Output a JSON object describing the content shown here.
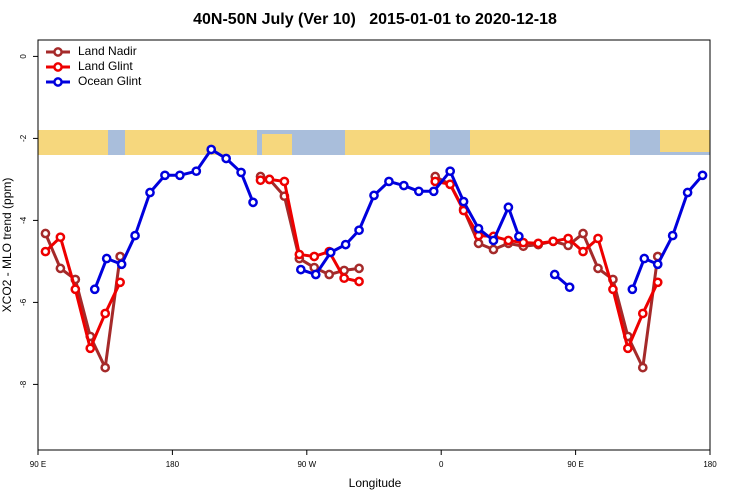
{
  "chart_data": {
    "type": "line",
    "title": "40N-50N July (Ver 10)   2015-01-01 to 2020-12-18",
    "x_label": "Longitude",
    "y_label": "XCO2 - MLO trend (ppm)",
    "xlim": [
      90,
      540
    ],
    "ylim": [
      -9.6,
      0.4
    ],
    "xticks": [
      {
        "value": 90,
        "label": "90 E"
      },
      180,
      {
        "value": 270,
        "label": "90 W"
      },
      {
        "value": 360,
        "label": "0"
      },
      {
        "value": 450,
        "label": "90 E"
      },
      {
        "value": 540,
        "label": "180"
      }
    ],
    "yticks": [
      0,
      -2,
      -4,
      -6,
      -8
    ],
    "legend": "top-left",
    "series": [
      {
        "name": "Land Nadir",
        "color": "#a52a2a",
        "x": [
          95,
          105,
          115,
          125,
          135,
          145,
          null,
          239,
          245,
          255,
          265,
          275,
          285,
          295,
          305,
          null,
          356,
          366,
          375,
          385,
          395,
          405,
          415,
          425,
          435,
          445,
          455,
          465,
          475,
          485,
          495,
          505
        ],
        "values": [
          -4.32,
          -5.17,
          -5.44,
          -6.83,
          -7.59,
          -4.88,
          null,
          -2.93,
          -3.0,
          -3.41,
          -4.93,
          -5.15,
          -5.32,
          -5.22,
          -5.17,
          null,
          -2.93,
          -3.12,
          -3.73,
          -4.56,
          -4.71,
          -4.56,
          -4.63,
          -4.59,
          -4.51,
          -4.61,
          -4.32,
          -5.17,
          -5.44,
          -6.83,
          -7.59,
          -4.88
        ]
      },
      {
        "name": "Land Glint",
        "color": "#ee0000",
        "x": [
          95,
          105,
          115,
          125,
          135,
          145,
          null,
          239,
          245,
          255,
          265,
          275,
          285,
          295,
          305,
          null,
          356,
          366,
          375,
          385,
          395,
          405,
          415,
          425,
          435,
          445,
          455,
          465,
          475,
          485,
          495,
          505
        ],
        "values": [
          -4.76,
          -4.41,
          -5.68,
          -7.12,
          -6.27,
          -5.51,
          null,
          -3.02,
          -3.0,
          -3.05,
          -4.83,
          -4.88,
          -4.76,
          -5.41,
          -5.49,
          null,
          -3.05,
          -3.12,
          -3.76,
          -4.37,
          -4.39,
          -4.49,
          -4.54,
          -4.56,
          -4.51,
          -4.44,
          -4.76,
          -4.44,
          -5.68,
          -7.12,
          -6.27,
          -5.51
        ]
      },
      {
        "name": "Ocean Glint",
        "color": "#0000dd",
        "x": [
          128,
          136,
          146,
          155,
          165,
          175,
          185,
          196,
          206,
          216,
          226,
          234,
          null,
          266,
          276,
          286,
          296,
          305,
          315,
          325,
          335,
          345,
          355,
          366,
          375,
          385,
          395,
          405,
          412,
          null,
          436,
          446,
          null,
          488,
          496,
          505,
          515,
          525,
          535
        ],
        "values": [
          -5.68,
          -4.93,
          -5.07,
          -4.37,
          -3.32,
          -2.9,
          -2.9,
          -2.8,
          -2.27,
          -2.49,
          -2.83,
          -3.56,
          null,
          -5.2,
          -5.32,
          -4.78,
          -4.59,
          -4.24,
          -3.39,
          -3.05,
          -3.15,
          -3.29,
          -3.29,
          -2.8,
          -3.54,
          -4.2,
          -4.49,
          -3.68,
          -4.39,
          null,
          -5.32,
          -5.63,
          null,
          -5.68,
          -4.93,
          -5.07,
          -4.37,
          -3.32,
          -2.9
        ]
      }
    ]
  }
}
